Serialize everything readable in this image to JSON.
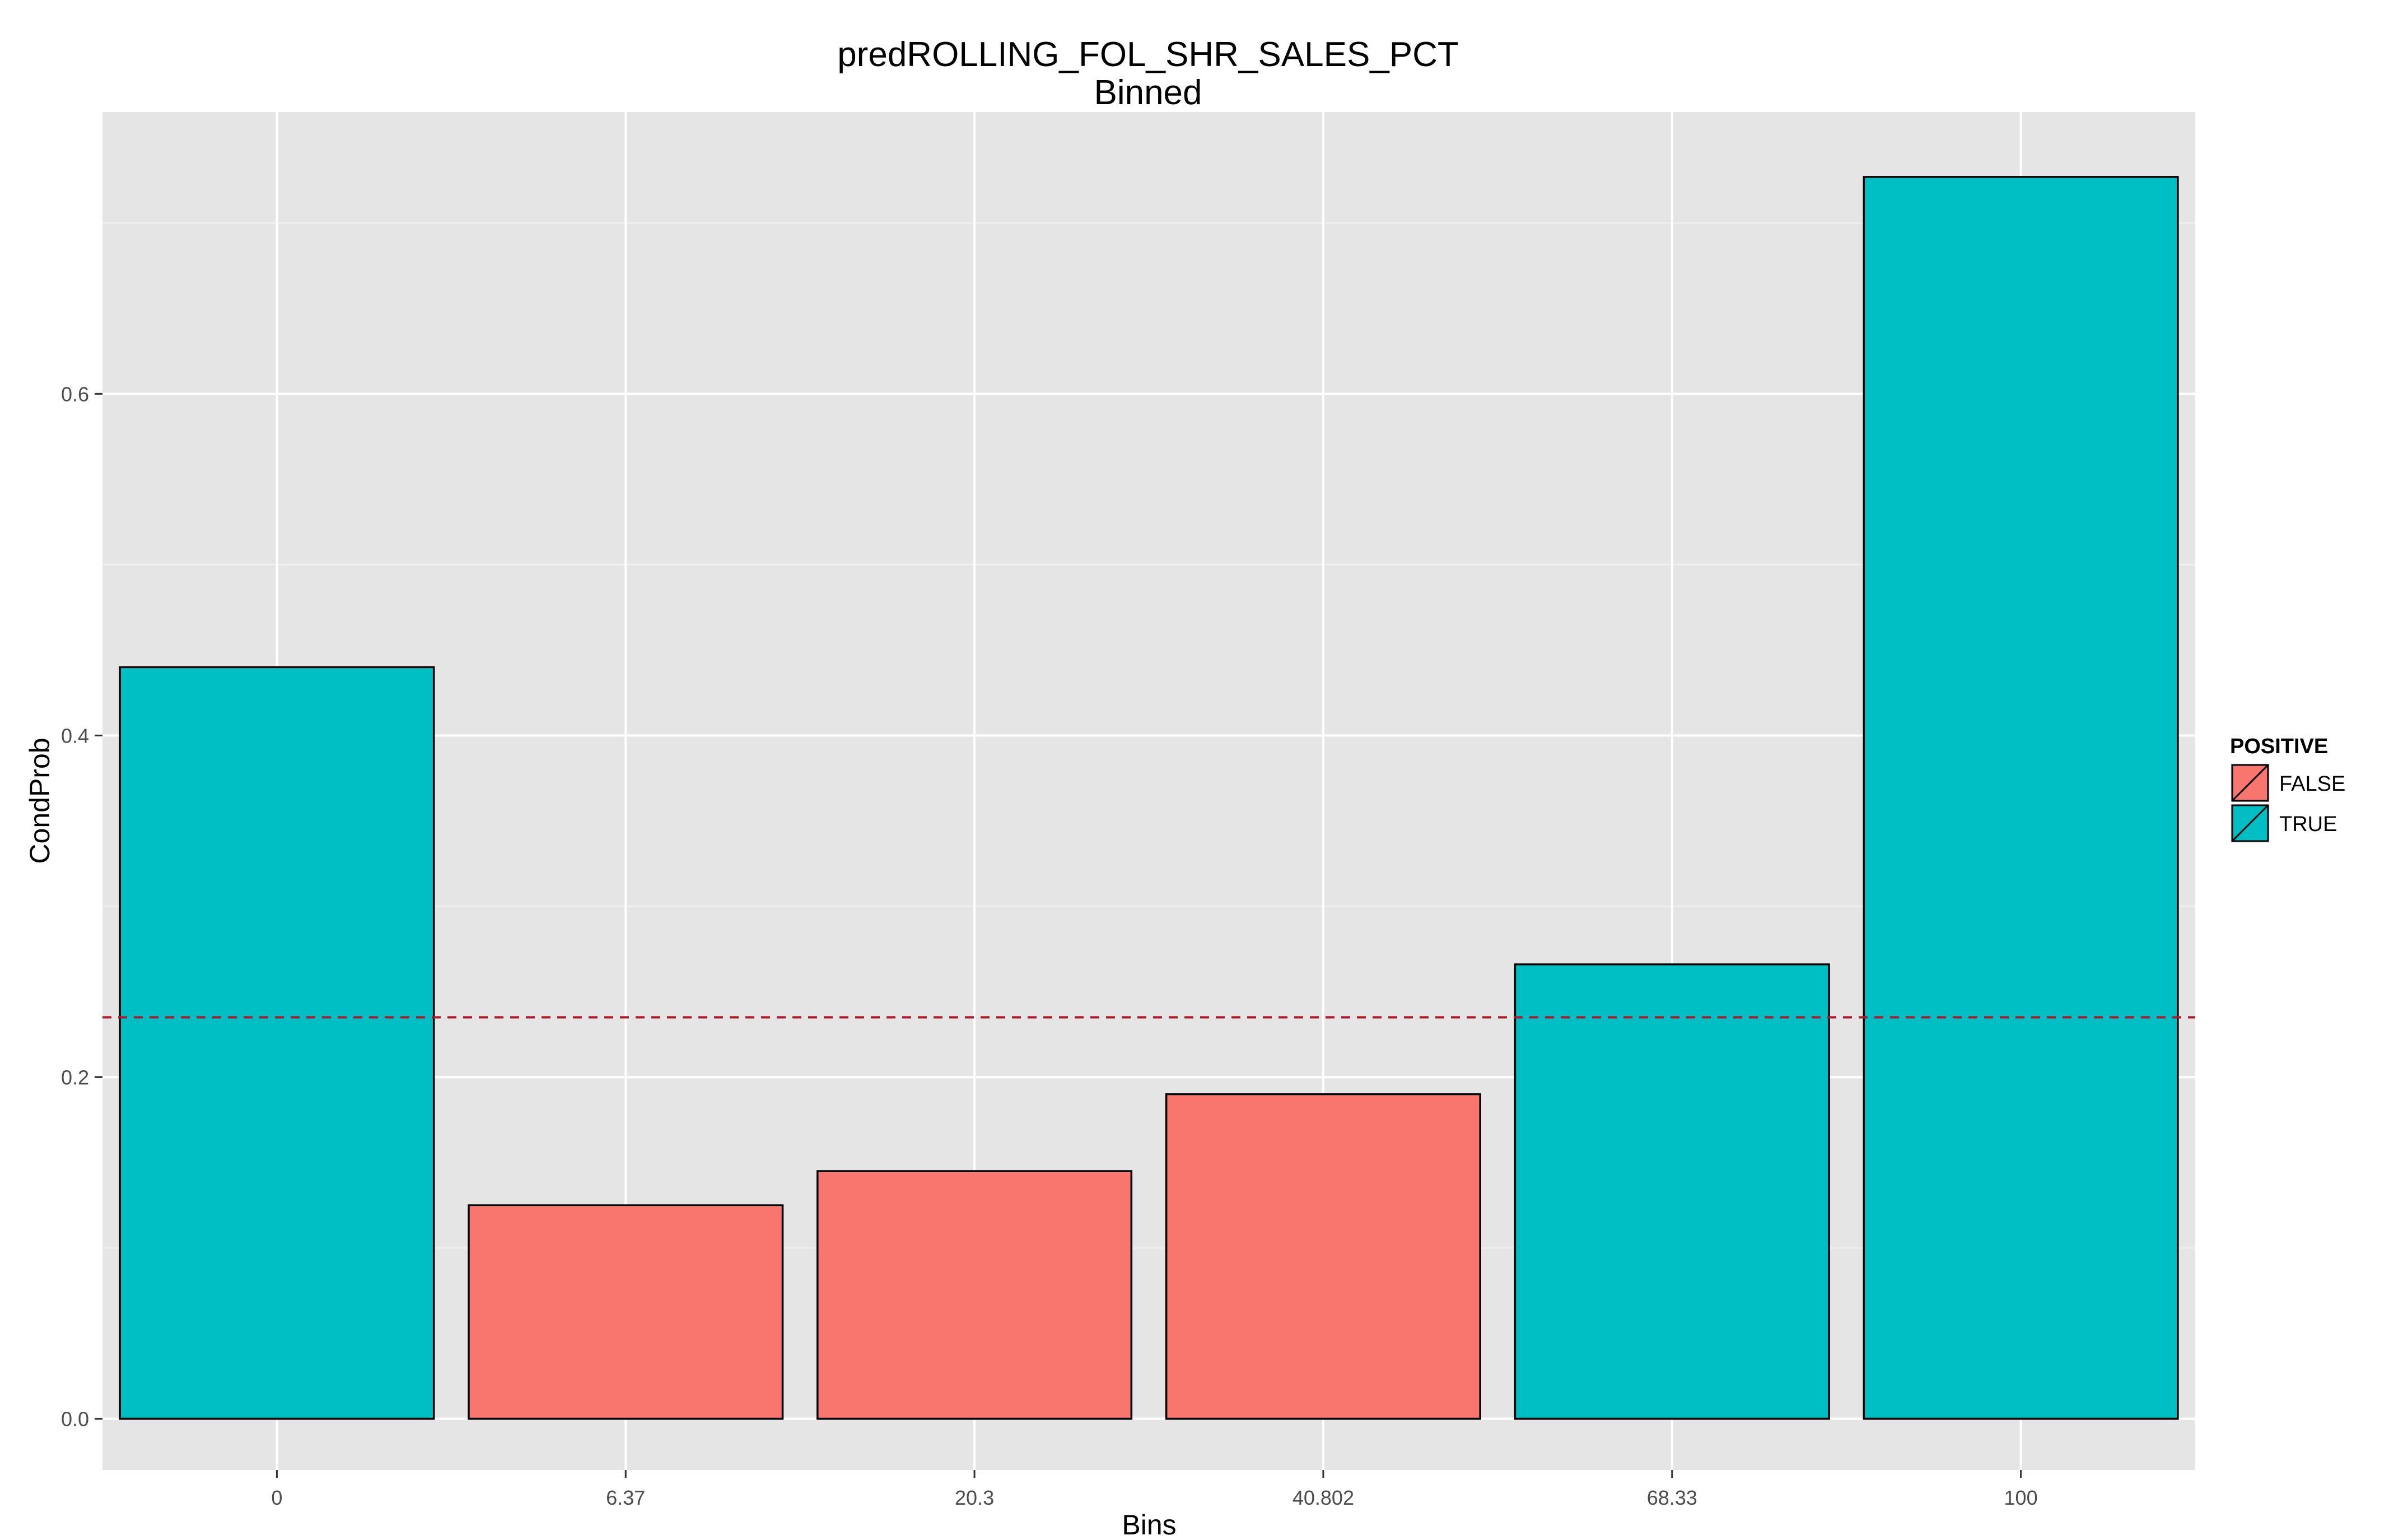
{
  "chart_data": {
    "type": "bar",
    "title": "predROLLING_FOL_SHR_SALES_PCT",
    "subtitle": "Binned",
    "xlabel": "Bins",
    "ylabel": "CondProb",
    "categories": [
      "0",
      "6.37",
      "20.3",
      "40.802",
      "68.33",
      "100"
    ],
    "values": [
      0.44,
      0.125,
      0.145,
      0.19,
      0.266,
      0.727
    ],
    "positive": [
      "TRUE",
      "FALSE",
      "FALSE",
      "FALSE",
      "TRUE",
      "TRUE"
    ],
    "ylim": [
      -0.03,
      0.765
    ],
    "yticks": [
      0.0,
      0.2,
      0.4,
      0.6
    ],
    "ytick_labels": [
      "0.0",
      "0.2",
      "0.4",
      "0.6"
    ],
    "reference_line": 0.235,
    "grid": true,
    "legend": {
      "title": "POSITIVE",
      "placement": "right",
      "entries": [
        {
          "label": "FALSE",
          "color": "#f8766d"
        },
        {
          "label": "TRUE",
          "color": "#00bfc4"
        }
      ]
    },
    "colors": {
      "TRUE": "#00bfc4",
      "FALSE": "#f8766d",
      "panel": "#e5e5e5",
      "grid": "#ffffff",
      "reference_line": "#b2182b"
    }
  }
}
